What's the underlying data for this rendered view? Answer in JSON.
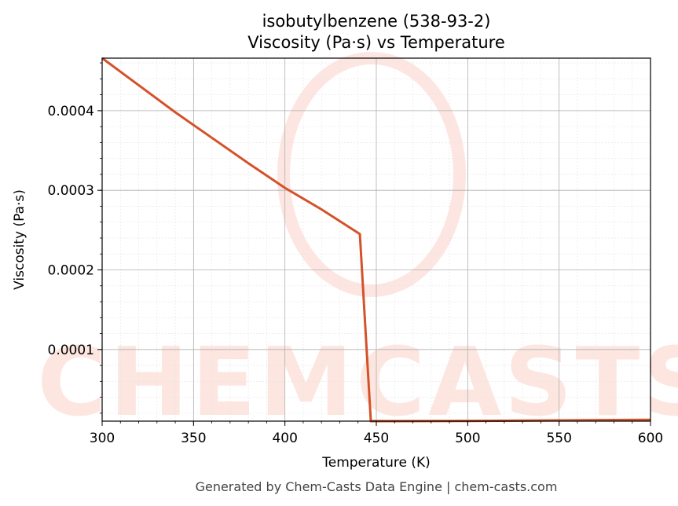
{
  "chart_data": {
    "type": "line",
    "title": "isobutylbenzene (538-93-2)",
    "subtitle": "Viscosity (Pa·s) vs Temperature",
    "xlabel": "Temperature (K)",
    "ylabel": "Viscosity (Pa·s)",
    "xlim": [
      300,
      600
    ],
    "ylim": [
      1e-05,
      0.000466
    ],
    "x_ticks": [
      300,
      350,
      400,
      450,
      500,
      550,
      600
    ],
    "x_tick_labels": [
      "300",
      "350",
      "400",
      "450",
      "500",
      "550",
      "600"
    ],
    "y_ticks": [
      0.0001,
      0.0002,
      0.0003,
      0.0004
    ],
    "y_tick_labels": [
      "0.0001",
      "0.0002",
      "0.0003",
      "0.0004"
    ],
    "grid": true,
    "color": "#d4522a",
    "series": [
      {
        "x": [
          300,
          320,
          340,
          360,
          380,
          400,
          420,
          441,
          447,
          460,
          500,
          550,
          600
        ],
        "y": [
          0.000466,
          0.000432,
          0.000398,
          0.000366,
          0.000334,
          0.000303,
          0.000276,
          0.000245,
          9.5e-06,
          9.6e-06,
          1.02e-05,
          1.1e-05,
          1.17e-05
        ]
      }
    ]
  },
  "watermark": "CHEMCASTS",
  "footer": "Generated by Chem-Casts Data Engine | chem-casts.com"
}
